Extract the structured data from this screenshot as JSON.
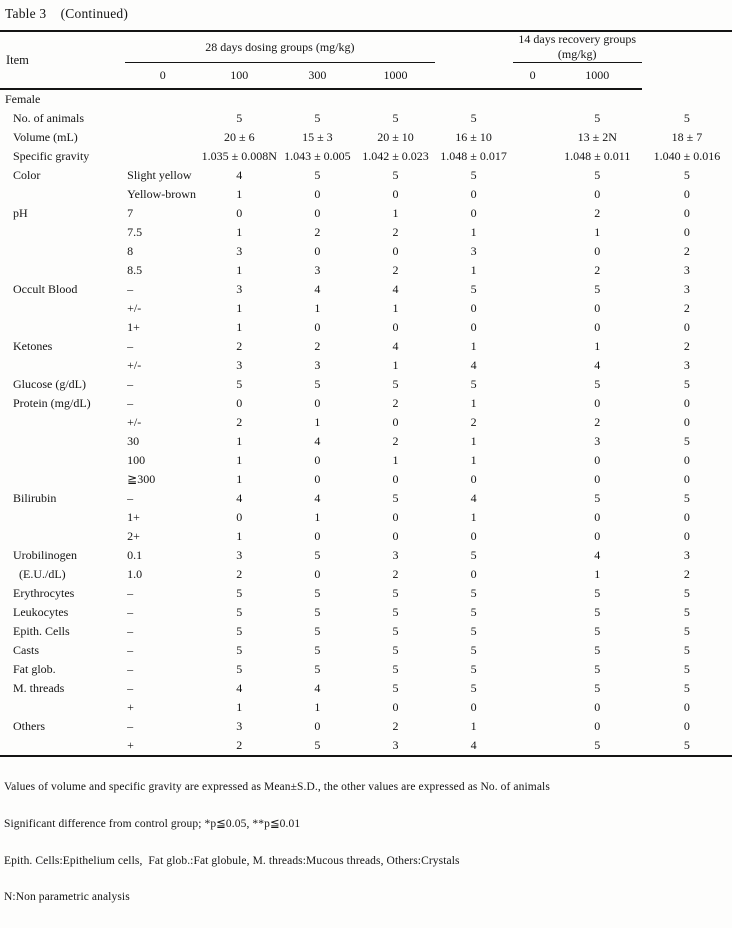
{
  "title": "Table 3    (Continued)",
  "header": {
    "item_label": "Item",
    "group1": {
      "label": "28 days dosing groups (mg/kg)",
      "doses": [
        "0",
        "100",
        "300",
        "1000"
      ]
    },
    "group2": {
      "label": "14 days recovery groups (mg/kg)",
      "doses": [
        "0",
        "1000"
      ]
    }
  },
  "table": {
    "rows": [
      {
        "item": "Female",
        "section": true,
        "sub": "",
        "values": [
          "",
          "",
          "",
          "",
          "",
          ""
        ]
      },
      {
        "item": "No. of animals",
        "sub": "",
        "values": [
          "5",
          "5",
          "5",
          "5",
          "5",
          "5"
        ]
      },
      {
        "item": "Volume (mL)",
        "sub": "",
        "values": [
          "20 ± 6",
          "15 ± 3",
          "20 ± 10",
          "16 ± 10",
          "13 ± 2N",
          "18 ± 7"
        ]
      },
      {
        "item": "Specific gravity",
        "sub": "",
        "values": [
          "1.035 ± 0.008N",
          "1.043 ± 0.005",
          "1.042 ± 0.023",
          "1.048 ± 0.017",
          "1.048 ± 0.011",
          "1.040 ± 0.016"
        ]
      },
      {
        "item": "Color",
        "sub": "Slight yellow",
        "values": [
          "4",
          "5",
          "5",
          "5",
          "5",
          "5"
        ]
      },
      {
        "item": "",
        "sub": "Yellow-brown",
        "values": [
          "1",
          "0",
          "0",
          "0",
          "0",
          "0"
        ]
      },
      {
        "item": "pH",
        "sub": "7",
        "values": [
          "0",
          "0",
          "1",
          "0",
          "2",
          "0"
        ]
      },
      {
        "item": "",
        "sub": "7.5",
        "values": [
          "1",
          "2",
          "2",
          "1",
          "1",
          "0"
        ]
      },
      {
        "item": "",
        "sub": "8",
        "values": [
          "3",
          "0",
          "0",
          "3",
          "0",
          "2"
        ]
      },
      {
        "item": "",
        "sub": "8.5",
        "values": [
          "1",
          "3",
          "2",
          "1",
          "2",
          "3"
        ]
      },
      {
        "item": "Occult Blood",
        "sub": "–",
        "values": [
          "3",
          "4",
          "4",
          "5",
          "5",
          "3"
        ]
      },
      {
        "item": "",
        "sub": "+/-",
        "values": [
          "1",
          "1",
          "1",
          "0",
          "0",
          "2"
        ]
      },
      {
        "item": "",
        "sub": "1+",
        "values": [
          "1",
          "0",
          "0",
          "0",
          "0",
          "0"
        ]
      },
      {
        "item": "Ketones",
        "sub": "–",
        "values": [
          "2",
          "2",
          "4",
          "1",
          "1",
          "2"
        ]
      },
      {
        "item": "",
        "sub": "+/-",
        "values": [
          "3",
          "3",
          "1",
          "4",
          "4",
          "3"
        ]
      },
      {
        "item": "Glucose (g/dL)",
        "sub": "–",
        "values": [
          "5",
          "5",
          "5",
          "5",
          "5",
          "5"
        ]
      },
      {
        "item": "Protein (mg/dL)",
        "sub": "–",
        "values": [
          "0",
          "0",
          "2",
          "1",
          "0",
          "0"
        ]
      },
      {
        "item": "",
        "sub": "+/-",
        "values": [
          "2",
          "1",
          "0",
          "2",
          "2",
          "0"
        ]
      },
      {
        "item": "",
        "sub": "30",
        "values": [
          "1",
          "4",
          "2",
          "1",
          "3",
          "5"
        ]
      },
      {
        "item": "",
        "sub": "100",
        "values": [
          "1",
          "0",
          "1",
          "1",
          "0",
          "0"
        ]
      },
      {
        "item": "",
        "sub": "≧300",
        "values": [
          "1",
          "0",
          "0",
          "0",
          "0",
          "0"
        ]
      },
      {
        "item": "Bilirubin",
        "sub": "–",
        "values": [
          "4",
          "4",
          "5",
          "4",
          "5",
          "5"
        ]
      },
      {
        "item": "",
        "sub": "1+",
        "values": [
          "0",
          "1",
          "0",
          "1",
          "0",
          "0"
        ]
      },
      {
        "item": "",
        "sub": "2+",
        "values": [
          "1",
          "0",
          "0",
          "0",
          "0",
          "0"
        ]
      },
      {
        "item": "Urobilinogen",
        "sub": "0.1",
        "values": [
          "3",
          "5",
          "3",
          "5",
          "4",
          "3"
        ]
      },
      {
        "item": "  (E.U./dL)",
        "sub": "1.0",
        "values": [
          "2",
          "0",
          "2",
          "0",
          "1",
          "2"
        ]
      },
      {
        "item": "Erythrocytes",
        "sub": "–",
        "values": [
          "5",
          "5",
          "5",
          "5",
          "5",
          "5"
        ]
      },
      {
        "item": "Leukocytes",
        "sub": "–",
        "values": [
          "5",
          "5",
          "5",
          "5",
          "5",
          "5"
        ]
      },
      {
        "item": "Epith. Cells",
        "sub": "–",
        "values": [
          "5",
          "5",
          "5",
          "5",
          "5",
          "5"
        ]
      },
      {
        "item": "Casts",
        "sub": "–",
        "values": [
          "5",
          "5",
          "5",
          "5",
          "5",
          "5"
        ]
      },
      {
        "item": "Fat glob.",
        "sub": "–",
        "values": [
          "5",
          "5",
          "5",
          "5",
          "5",
          "5"
        ]
      },
      {
        "item": "M. threads",
        "sub": "–",
        "values": [
          "4",
          "4",
          "5",
          "5",
          "5",
          "5"
        ]
      },
      {
        "item": "",
        "sub": "+",
        "values": [
          "1",
          "1",
          "0",
          "0",
          "0",
          "0"
        ]
      },
      {
        "item": "Others",
        "sub": "–",
        "values": [
          "3",
          "0",
          "2",
          "1",
          "0",
          "0"
        ]
      },
      {
        "item": "",
        "sub": "+",
        "values": [
          "2",
          "5",
          "3",
          "4",
          "5",
          "5"
        ]
      }
    ]
  },
  "notes": [
    "Values of volume and specific gravity are expressed as Mean±S.D., the other values are expressed as No. of animals",
    "Significant difference from control group; *p≦0.05, **p≦0.01",
    "Epith. Cells:Epithelium cells,  Fat glob.:Fat globule, M. threads:Mucous threads, Others:Crystals",
    "N:Non parametric analysis"
  ]
}
